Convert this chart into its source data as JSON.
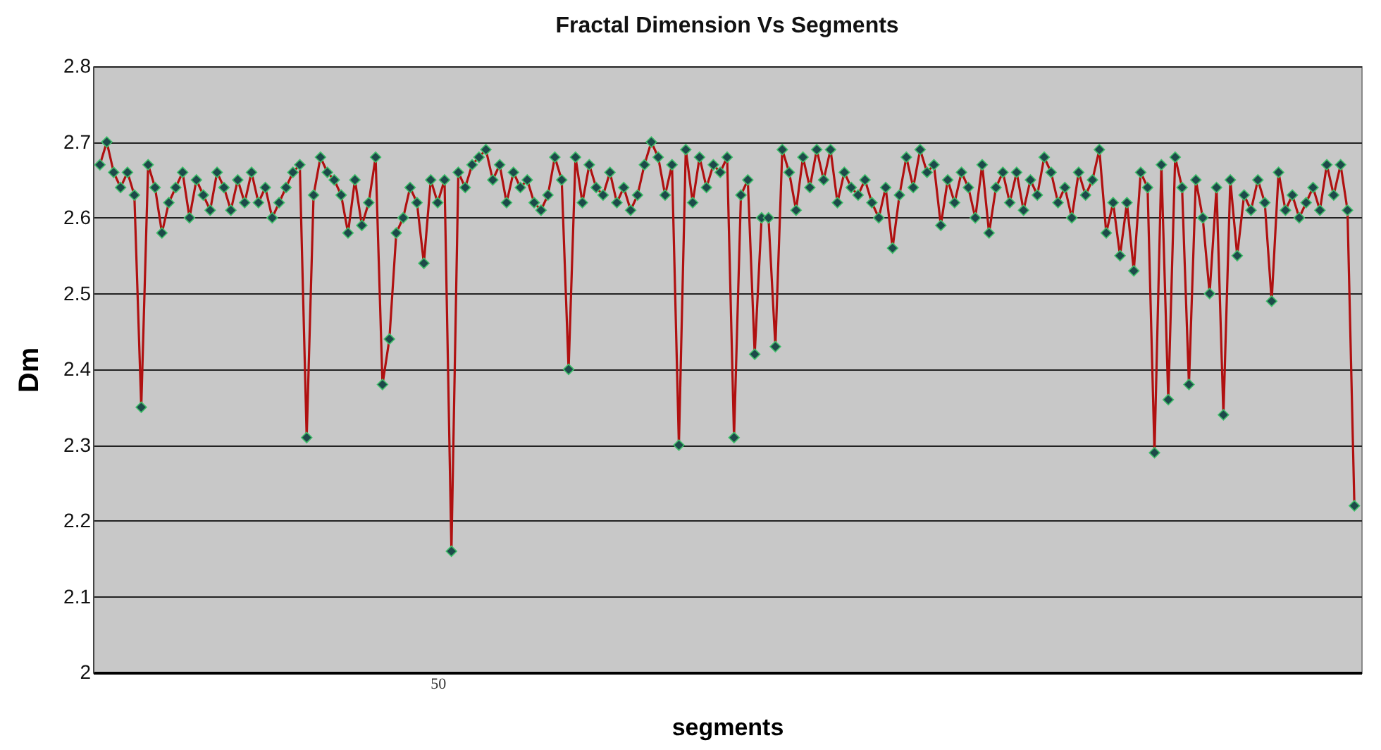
{
  "chart_data": {
    "type": "line",
    "title": "Fractal Dimension Vs Segments",
    "xlabel": "segments",
    "ylabel": "Dm",
    "categories": [
      null,
      null,
      null,
      null,
      null,
      null,
      null,
      null,
      null,
      null,
      null,
      null,
      null,
      null,
      null,
      null,
      null,
      null,
      null,
      null,
      null,
      null,
      null,
      null,
      null,
      null,
      null,
      null,
      null,
      null,
      null,
      null,
      null,
      null,
      null,
      null,
      null,
      null,
      null,
      null,
      null,
      null,
      null,
      null,
      null,
      null,
      null,
      null,
      null,
      "50",
      null,
      null,
      null,
      null,
      null,
      null,
      null,
      null,
      null,
      null,
      null,
      null,
      null,
      null,
      null,
      null,
      null,
      null,
      null,
      null,
      null,
      null,
      null,
      null,
      null,
      null,
      null,
      null,
      null,
      null,
      null,
      null,
      null,
      null,
      null,
      null,
      null,
      null,
      null,
      null,
      null,
      null,
      null,
      null,
      null,
      null,
      null,
      null,
      null,
      null,
      null,
      null,
      null,
      null,
      null,
      null,
      null,
      null,
      null,
      null,
      null,
      null,
      null,
      null,
      null,
      null,
      null,
      null,
      null,
      null,
      null,
      null,
      null,
      null,
      null,
      null,
      null,
      null,
      null,
      null,
      null,
      null,
      null,
      null,
      null,
      null,
      null,
      null,
      null,
      null,
      null,
      null,
      null,
      null,
      null,
      null,
      null,
      null,
      null,
      null,
      null,
      null,
      null,
      null,
      null,
      null,
      null,
      null,
      null,
      null,
      null,
      null,
      null,
      null,
      null,
      null,
      null,
      null,
      null,
      null,
      null,
      null,
      null,
      null,
      null,
      null,
      null,
      null,
      null,
      null,
      null,
      null,
      null
    ],
    "series": [
      {
        "color": "#b01010",
        "values": [
          2.67,
          2.7,
          2.66,
          2.64,
          2.66,
          2.63,
          2.35,
          2.67,
          2.64,
          2.58,
          2.62,
          2.64,
          2.66,
          2.6,
          2.65,
          2.63,
          2.61,
          2.66,
          2.64,
          2.61,
          2.65,
          2.62,
          2.66,
          2.62,
          2.64,
          2.6,
          2.62,
          2.64,
          2.66,
          2.67,
          2.31,
          2.63,
          2.68,
          2.66,
          2.65,
          2.63,
          2.58,
          2.65,
          2.59,
          2.62,
          2.68,
          2.38,
          2.44,
          2.58,
          2.6,
          2.64,
          2.62,
          2.54,
          2.65,
          2.62,
          2.65,
          2.16,
          2.66,
          2.64,
          2.67,
          2.68,
          2.69,
          2.65,
          2.67,
          2.62,
          2.66,
          2.64,
          2.65,
          2.62,
          2.61,
          2.63,
          2.68,
          2.65,
          2.4,
          2.68,
          2.62,
          2.67,
          2.64,
          2.63,
          2.66,
          2.62,
          2.64,
          2.61,
          2.63,
          2.67,
          2.7,
          2.68,
          2.63,
          2.67,
          2.3,
          2.69,
          2.62,
          2.68,
          2.64,
          2.67,
          2.66,
          2.68,
          2.31,
          2.63,
          2.65,
          2.42,
          2.6,
          2.6,
          2.43,
          2.69,
          2.66,
          2.61,
          2.68,
          2.64,
          2.69,
          2.65,
          2.69,
          2.62,
          2.66,
          2.64,
          2.63,
          2.65,
          2.62,
          2.6,
          2.64,
          2.56,
          2.63,
          2.68,
          2.64,
          2.69,
          2.66,
          2.67,
          2.59,
          2.65,
          2.62,
          2.66,
          2.64,
          2.6,
          2.67,
          2.58,
          2.64,
          2.66,
          2.62,
          2.66,
          2.61,
          2.65,
          2.63,
          2.68,
          2.66,
          2.62,
          2.64,
          2.6,
          2.66,
          2.63,
          2.65,
          2.69,
          2.58,
          2.62,
          2.55,
          2.62,
          2.53,
          2.66,
          2.64,
          2.29,
          2.67,
          2.36,
          2.68,
          2.64,
          2.38,
          2.65,
          2.6,
          2.5,
          2.64,
          2.34,
          2.65,
          2.55,
          2.63,
          2.61,
          2.65,
          2.62,
          2.49,
          2.66,
          2.61,
          2.63,
          2.6,
          2.62,
          2.64,
          2.61,
          2.67,
          2.63,
          2.67,
          2.61,
          2.22
        ]
      }
    ],
    "ylim": [
      2,
      2.8
    ],
    "yticks": [
      2,
      2.1,
      2.2,
      2.3,
      2.4,
      2.5,
      2.6,
      2.7,
      2.8
    ],
    "grid": "y",
    "marker": "diamond",
    "line_style": "solid"
  }
}
